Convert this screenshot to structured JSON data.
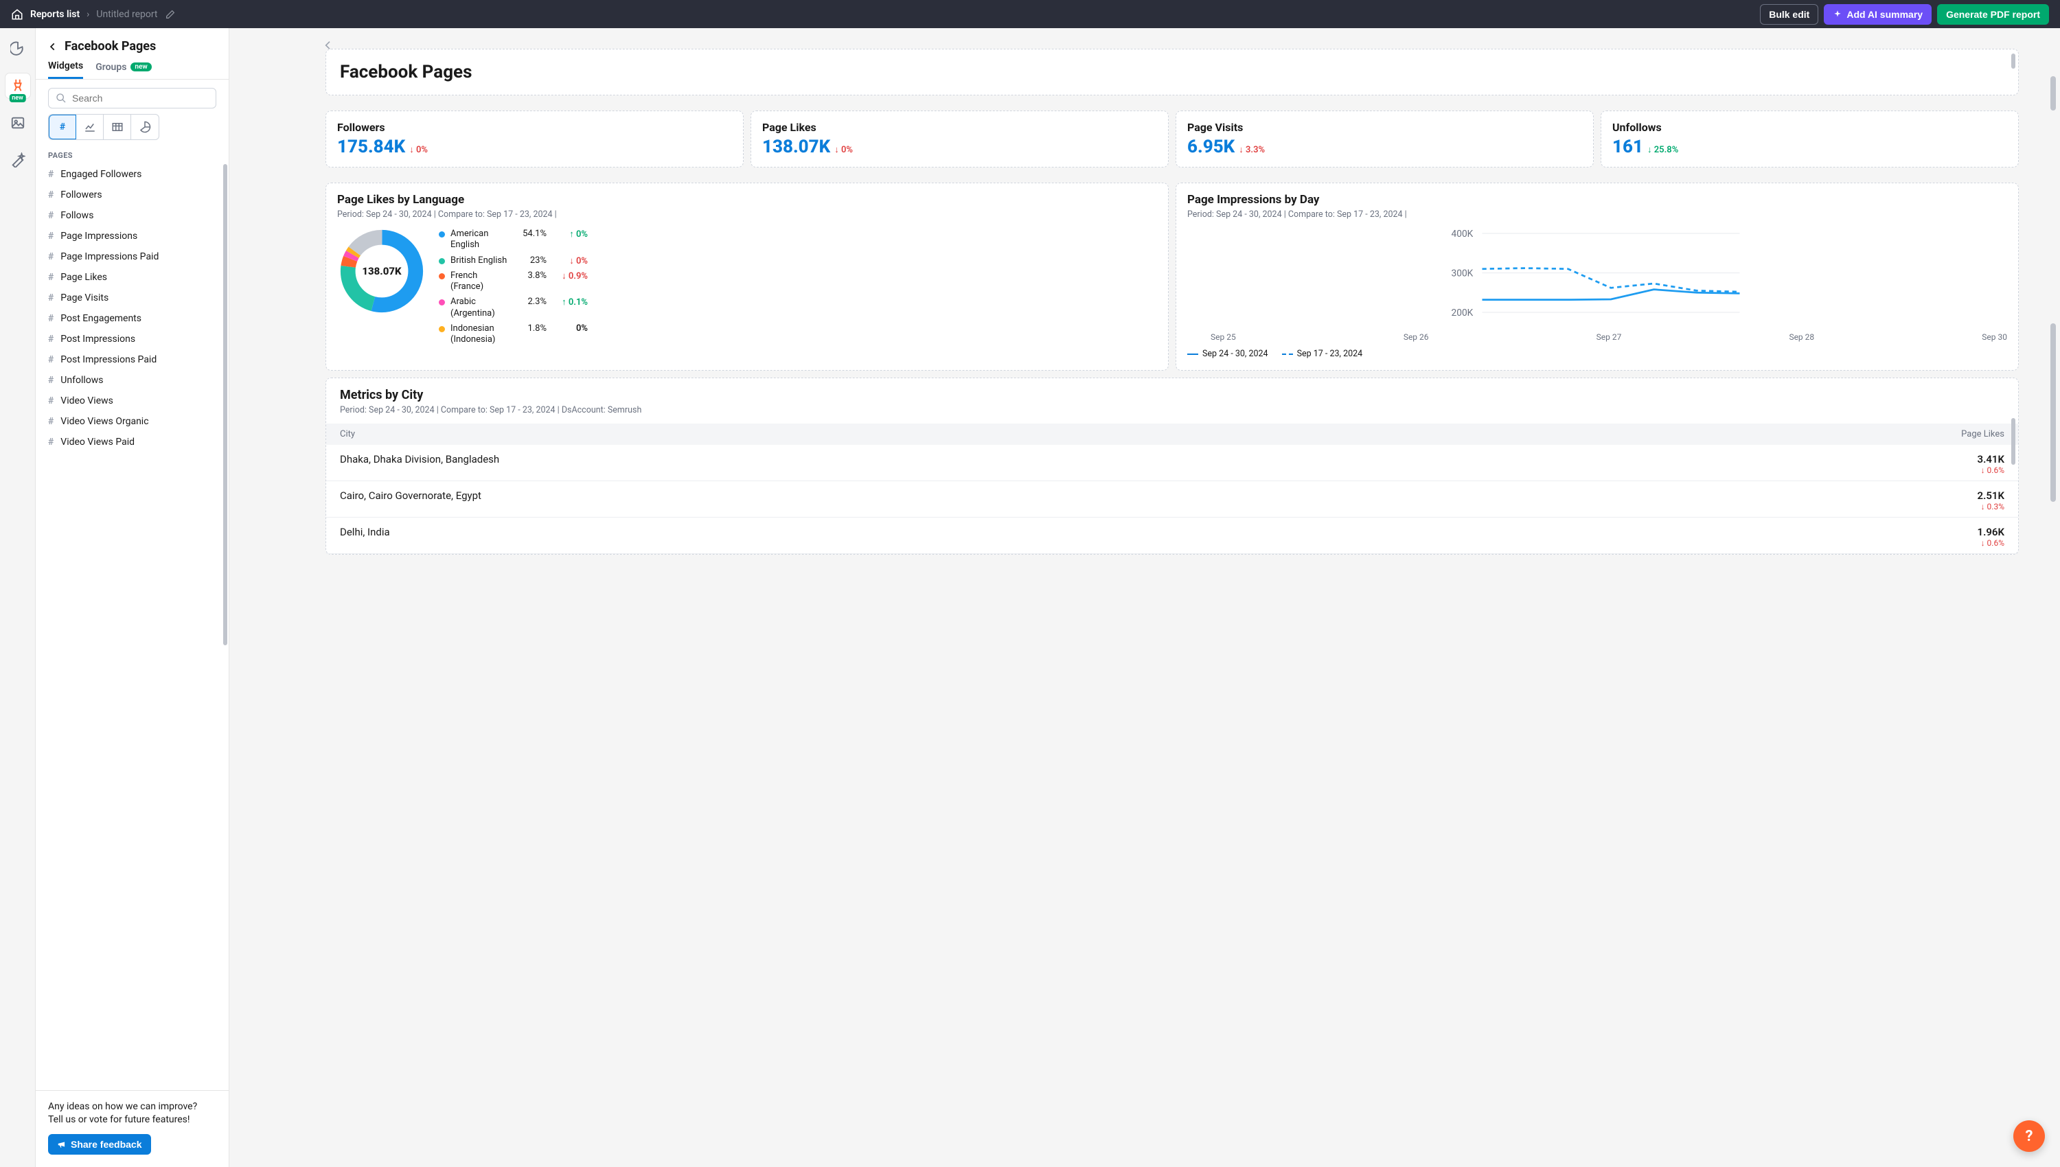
{
  "topbar": {
    "reports_link": "Reports list",
    "report_name": "Untitled report",
    "bulk_edit": "Bulk edit",
    "ai_summary": "Add AI summary",
    "pdf": "Generate PDF report"
  },
  "rail": {
    "new_badge": "new"
  },
  "sidebar": {
    "title": "Facebook Pages",
    "tabs": {
      "widgets": "Widgets",
      "groups": "Groups",
      "groups_badge": "new"
    },
    "search_placeholder": "Search",
    "section": "PAGES",
    "items": [
      "Engaged Followers",
      "Followers",
      "Follows",
      "Page Impressions",
      "Page Impressions Paid",
      "Page Likes",
      "Page Visits",
      "Post Engagements",
      "Post Impressions",
      "Post Impressions Paid",
      "Unfollows",
      "Video Views",
      "Video Views Organic",
      "Video Views Paid"
    ],
    "feedback_line1": "Any ideas on how we can improve?",
    "feedback_line2": "Tell us or vote for future features!",
    "feedback_btn": "Share feedback"
  },
  "page": {
    "title": "Facebook Pages",
    "kpis": [
      {
        "label": "Followers",
        "value": "175.84K",
        "delta": "0%",
        "dir": "down",
        "color": "#0b7dda"
      },
      {
        "label": "Page Likes",
        "value": "138.07K",
        "delta": "0%",
        "dir": "down",
        "color": "#0b7dda"
      },
      {
        "label": "Page Visits",
        "value": "6.95K",
        "delta": "3.3%",
        "dir": "down",
        "color": "#0b7dda"
      },
      {
        "label": "Unfollows",
        "value": "161",
        "delta": "25.8%",
        "dir": "down-green",
        "color": "#0b7dda"
      }
    ],
    "donut": {
      "title": "Page Likes by Language",
      "period": "Period: Sep 24 - 30, 2024 | Compare to: Sep 17 - 23, 2024 |",
      "center": "138.07K",
      "slices": [
        {
          "name": "American English",
          "pct": 54.1,
          "pct_label": "54.1%",
          "delta": "0%",
          "dir": "up",
          "color": "#1e9cf0"
        },
        {
          "name": "British English",
          "pct": 23.0,
          "pct_label": "23%",
          "delta": "0%",
          "dir": "down",
          "color": "#22c3a6"
        },
        {
          "name": "French (France)",
          "pct": 3.8,
          "pct_label": "3.8%",
          "delta": "0.9%",
          "dir": "down",
          "color": "#ff642d"
        },
        {
          "name": "Arabic (Argentina)",
          "pct": 2.3,
          "pct_label": "2.3%",
          "delta": "0.1%",
          "dir": "up",
          "color": "#ff4fb8"
        },
        {
          "name": "Indonesian (Indonesia)",
          "pct": 1.8,
          "pct_label": "1.8%",
          "delta": "0%",
          "dir": "none",
          "color": "#ffb020"
        }
      ],
      "other_pct": 15.0,
      "other_color": "#c4c9d1"
    },
    "line": {
      "title": "Page Impressions by Day",
      "period": "Period: Sep 24 - 30, 2024 | Compare to: Sep 17 - 23, 2024 |",
      "yticks": [
        "400K",
        "300K",
        "200K"
      ],
      "yrange": [
        200,
        400
      ],
      "xlabels": [
        "Sep 25",
        "Sep 26",
        "Sep 27",
        "Sep 28",
        "Sep 30"
      ],
      "series_current": {
        "label": "Sep 24 - 30, 2024",
        "values": [
          232,
          232,
          232,
          233,
          258,
          250,
          248
        ],
        "color": "#1e9cf0"
      },
      "series_compare": {
        "label": "Sep 17 - 23, 2024",
        "values": [
          310,
          312,
          310,
          262,
          273,
          255,
          252
        ],
        "color": "#1e9cf0"
      }
    },
    "table": {
      "title": "Metrics by City",
      "period": "Period: Sep 24 - 30, 2024 | Compare to: Sep 17 - 23, 2024 | DsAccount: Semrush",
      "col_city": "City",
      "col_val": "Page Likes",
      "rows": [
        {
          "city": "Dhaka, Dhaka Division, Bangladesh",
          "value": "3.41K",
          "delta": "0.6%",
          "dir": "down"
        },
        {
          "city": "Cairo, Cairo Governorate, Egypt",
          "value": "2.51K",
          "delta": "0.3%",
          "dir": "down"
        },
        {
          "city": "Delhi, India",
          "value": "1.96K",
          "delta": "0.6%",
          "dir": "down"
        }
      ]
    }
  },
  "colors": {
    "accent": "#0b7dda",
    "green": "#00a96e",
    "red": "#e03f3f",
    "purple": "#6c4ff7",
    "orange": "#ff642d"
  }
}
